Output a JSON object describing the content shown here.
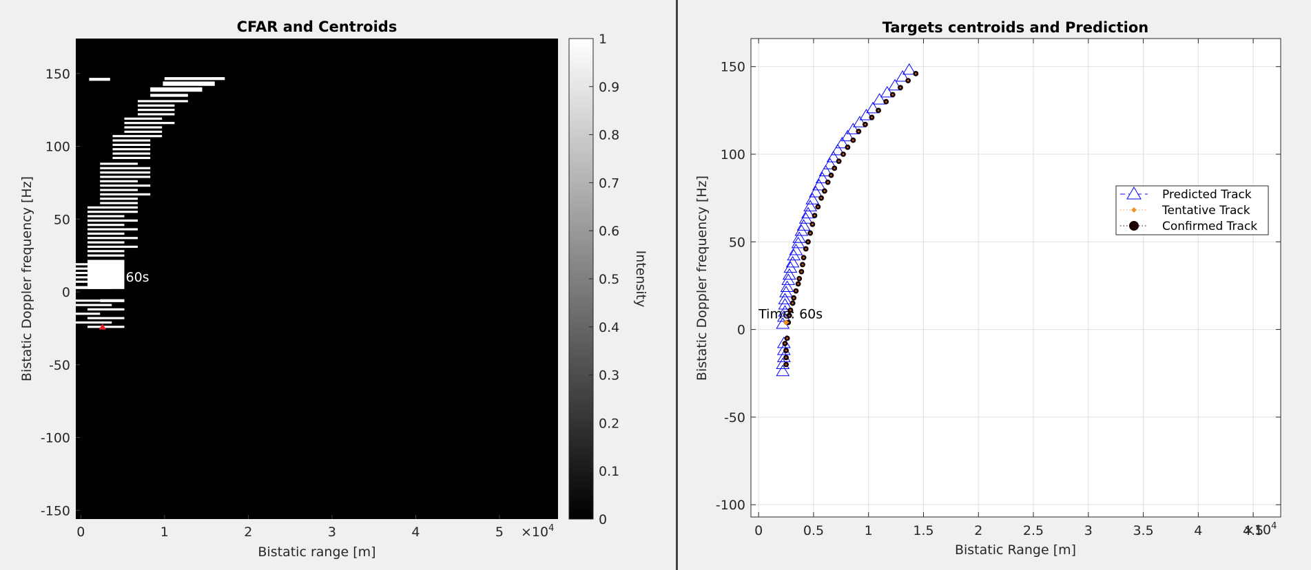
{
  "chart_data": [
    {
      "type": "heatmap",
      "title": "CFAR and Centroids",
      "xlabel": "Bistatic range [m]",
      "ylabel": "Bistatic Doppler frequency [Hz]",
      "xlim": [
        -0.06,
        5.7
      ],
      "ylim": [
        -156,
        174
      ],
      "x_exponent_label": "×10",
      "x_exponent_power": "4",
      "xticks": [
        0,
        1,
        2,
        3,
        4,
        5
      ],
      "xtick_labels": [
        "0",
        "1",
        "2",
        "3",
        "4",
        "5"
      ],
      "yticks": [
        150,
        100,
        50,
        0,
        -50,
        -100,
        -150
      ],
      "ytick_labels": [
        "150",
        "100",
        "50",
        "0",
        "-50",
        "-100",
        "-150"
      ],
      "grid": false,
      "background_color": "#000000",
      "detection_color": "#ffffff",
      "colorbar": {
        "label": "Intensity",
        "range": [
          0,
          1
        ],
        "ticks": [
          0,
          0.1,
          0.2,
          0.3,
          0.4,
          0.5,
          0.6,
          0.7,
          0.8,
          0.9,
          1
        ],
        "tick_labels": [
          "0",
          "0.1",
          "0.2",
          "0.3",
          "0.4",
          "0.5",
          "0.6",
          "0.7",
          "0.8",
          "0.9",
          "1"
        ]
      },
      "detections": [
        {
          "x0": 0.1,
          "x1": 0.35,
          "y": 146,
          "h": 2
        },
        {
          "x0": 1.0,
          "x1": 1.72,
          "y": 146.5,
          "h": 2
        },
        {
          "x0": 0.98,
          "x1": 1.6,
          "y": 143,
          "h": 3
        },
        {
          "x0": 0.83,
          "x1": 1.45,
          "y": 139,
          "h": 3
        },
        {
          "x0": 0.83,
          "x1": 1.28,
          "y": 135,
          "h": 2
        },
        {
          "x0": 0.68,
          "x1": 1.28,
          "y": 131,
          "h": 1.5
        },
        {
          "x0": 0.68,
          "x1": 1.12,
          "y": 128,
          "h": 1.5
        },
        {
          "x0": 0.68,
          "x1": 1.12,
          "y": 125,
          "h": 1.5
        },
        {
          "x0": 0.68,
          "x1": 1.12,
          "y": 122,
          "h": 1.5
        },
        {
          "x0": 0.52,
          "x1": 0.97,
          "y": 119,
          "h": 1.5
        },
        {
          "x0": 0.52,
          "x1": 1.12,
          "y": 116,
          "h": 1.5
        },
        {
          "x0": 0.52,
          "x1": 0.97,
          "y": 113,
          "h": 1.5
        },
        {
          "x0": 0.52,
          "x1": 0.97,
          "y": 110,
          "h": 1.5
        },
        {
          "x0": 0.38,
          "x1": 0.97,
          "y": 107,
          "h": 1.5
        },
        {
          "x0": 0.38,
          "x1": 0.83,
          "y": 104,
          "h": 1.5
        },
        {
          "x0": 0.38,
          "x1": 0.83,
          "y": 101,
          "h": 1.5
        },
        {
          "x0": 0.38,
          "x1": 0.83,
          "y": 98,
          "h": 1.5
        },
        {
          "x0": 0.38,
          "x1": 0.83,
          "y": 95,
          "h": 1.5
        },
        {
          "x0": 0.38,
          "x1": 0.83,
          "y": 92,
          "h": 1.5
        },
        {
          "x0": 0.23,
          "x1": 0.68,
          "y": 88,
          "h": 1.5
        },
        {
          "x0": 0.23,
          "x1": 0.83,
          "y": 85,
          "h": 1.5
        },
        {
          "x0": 0.23,
          "x1": 0.83,
          "y": 82,
          "h": 1.5
        },
        {
          "x0": 0.23,
          "x1": 0.83,
          "y": 79,
          "h": 1.5
        },
        {
          "x0": 0.23,
          "x1": 0.68,
          "y": 76,
          "h": 1.5
        },
        {
          "x0": 0.23,
          "x1": 0.83,
          "y": 73,
          "h": 1.5
        },
        {
          "x0": 0.23,
          "x1": 0.68,
          "y": 70,
          "h": 1.5
        },
        {
          "x0": 0.23,
          "x1": 0.83,
          "y": 67,
          "h": 1.5
        },
        {
          "x0": 0.23,
          "x1": 0.68,
          "y": 64,
          "h": 1.5
        },
        {
          "x0": 0.23,
          "x1": 0.68,
          "y": 61,
          "h": 1.5
        },
        {
          "x0": 0.08,
          "x1": 0.68,
          "y": 58,
          "h": 1.5
        },
        {
          "x0": 0.08,
          "x1": 0.68,
          "y": 55,
          "h": 1.5
        },
        {
          "x0": 0.08,
          "x1": 0.52,
          "y": 52,
          "h": 1.5
        },
        {
          "x0": 0.08,
          "x1": 0.68,
          "y": 49,
          "h": 1.5
        },
        {
          "x0": 0.08,
          "x1": 0.52,
          "y": 46,
          "h": 1.5
        },
        {
          "x0": 0.08,
          "x1": 0.68,
          "y": 43,
          "h": 1.5
        },
        {
          "x0": 0.08,
          "x1": 0.52,
          "y": 40,
          "h": 1.5
        },
        {
          "x0": 0.08,
          "x1": 0.68,
          "y": 37,
          "h": 1.5
        },
        {
          "x0": 0.08,
          "x1": 0.52,
          "y": 34,
          "h": 1.5
        },
        {
          "x0": 0.08,
          "x1": 0.68,
          "y": 31,
          "h": 1.5
        },
        {
          "x0": 0.08,
          "x1": 0.52,
          "y": 28,
          "h": 1.5
        },
        {
          "x0": 0.08,
          "x1": 0.52,
          "y": 25,
          "h": 1.5
        },
        {
          "x0": -0.06,
          "x1": 0.08,
          "y": 19,
          "h": 1.5
        },
        {
          "x0": -0.06,
          "x1": 0.08,
          "y": 16,
          "h": 1.5
        },
        {
          "x0": -0.06,
          "x1": 0.08,
          "y": 13,
          "h": 1.5
        },
        {
          "x0": -0.06,
          "x1": 0.08,
          "y": 10,
          "h": 1.5
        },
        {
          "x0": -0.06,
          "x1": 0.08,
          "y": 7,
          "h": 1.5
        },
        {
          "x0": 0.08,
          "x1": 0.52,
          "y": 12,
          "h": 20
        },
        {
          "x0": -0.06,
          "x1": 0.37,
          "y": 3,
          "h": 2
        },
        {
          "x0": 0.23,
          "x1": 0.52,
          "y": -6,
          "h": 2
        },
        {
          "x0": -0.06,
          "x1": 0.23,
          "y": -6,
          "h": 1.5
        },
        {
          "x0": -0.06,
          "x1": 0.37,
          "y": -9,
          "h": 1.5
        },
        {
          "x0": 0.08,
          "x1": 0.52,
          "y": -12,
          "h": 1.5
        },
        {
          "x0": -0.06,
          "x1": 0.23,
          "y": -15,
          "h": 1.5
        },
        {
          "x0": 0.08,
          "x1": 0.52,
          "y": -18,
          "h": 1.5
        },
        {
          "x0": -0.06,
          "x1": 0.37,
          "y": -21,
          "h": 1.5
        },
        {
          "x0": 0.08,
          "x1": 0.52,
          "y": -24,
          "h": 1.5
        }
      ],
      "centroid": {
        "x": 0.26,
        "y": -24,
        "color": "#e8202a"
      },
      "annotation": {
        "text": "60s",
        "x": 0.52,
        "y": 10
      }
    },
    {
      "type": "scatter",
      "title": "Targets centroids and  Prediction",
      "xlabel": "Bistatic Range [m]",
      "ylabel": "Bistatic Doppler frequency [Hz]",
      "xlim": [
        -0.07,
        4.75
      ],
      "ylim": [
        -107,
        166
      ],
      "x_exponent_label": "×10",
      "x_exponent_power": "4",
      "xticks": [
        0,
        0.5,
        1,
        1.5,
        2,
        2.5,
        3,
        3.5,
        4,
        4.5
      ],
      "xtick_labels": [
        "0",
        "0.5",
        "1",
        "1.5",
        "2",
        "2.5",
        "3",
        "3.5",
        "4",
        "4.5"
      ],
      "yticks": [
        150,
        100,
        50,
        0,
        -50,
        -100
      ],
      "ytick_labels": [
        "150",
        "100",
        "50",
        "0",
        "-50",
        "-100"
      ],
      "grid": true,
      "legend_placement": "right",
      "legend": [
        {
          "label": "Predicted Track",
          "marker": "triangle",
          "color": "#0000ff",
          "line": "dashed"
        },
        {
          "label": "Tentative Track",
          "marker": "diamond",
          "color": "#e8962a",
          "line": "dotted"
        },
        {
          "label": "Confirmed Track",
          "marker": "circle",
          "color": "#1a0000",
          "line": "dotted"
        }
      ],
      "series": [
        {
          "name": "Predicted Track",
          "marker": "triangle",
          "color": "#0000ff",
          "x": [
            0.22,
            0.22,
            0.23,
            0.23,
            0.23,
            0.22,
            0.23,
            0.24,
            0.24,
            0.24,
            0.25,
            0.26,
            0.27,
            0.28,
            0.29,
            0.31,
            0.32,
            0.34,
            0.36,
            0.37,
            0.39,
            0.41,
            0.43,
            0.45,
            0.47,
            0.49,
            0.52,
            0.55,
            0.58,
            0.61,
            0.65,
            0.68,
            0.72,
            0.76,
            0.81,
            0.86,
            0.92,
            0.98,
            1.04,
            1.1,
            1.17,
            1.24,
            1.31,
            1.37
          ],
          "y": [
            -24,
            -20,
            -16,
            -12,
            -8,
            3,
            7,
            10,
            14,
            17,
            21,
            24,
            28,
            31,
            35,
            38,
            42,
            45,
            49,
            52,
            56,
            59,
            63,
            66,
            70,
            74,
            78,
            82,
            86,
            90,
            94,
            98,
            102,
            106,
            110,
            114,
            118,
            122,
            126,
            131,
            135,
            139,
            144,
            148
          ]
        },
        {
          "name": "Confirmed Track",
          "marker": "circle",
          "color": "#1a0000",
          "x": [
            0.25,
            0.25,
            0.25,
            0.24,
            0.26,
            0.27,
            0.28,
            0.29,
            0.31,
            0.32,
            0.34,
            0.36,
            0.37,
            0.39,
            0.4,
            0.41,
            0.43,
            0.45,
            0.47,
            0.49,
            0.51,
            0.54,
            0.57,
            0.6,
            0.63,
            0.66,
            0.69,
            0.73,
            0.77,
            0.81,
            0.86,
            0.91,
            0.97,
            1.03,
            1.09,
            1.16,
            1.22,
            1.29,
            1.36,
            1.43
          ],
          "y": [
            -20,
            -16,
            -12,
            -8,
            -5,
            4,
            8,
            11,
            15,
            18,
            22,
            26,
            29,
            33,
            37,
            41,
            46,
            50,
            55,
            60,
            65,
            70,
            75,
            79,
            84,
            88,
            92,
            96,
            100,
            104,
            108,
            113,
            117,
            121,
            125,
            130,
            134,
            138,
            142,
            146
          ]
        },
        {
          "name": "Tentative Track",
          "marker": "diamond",
          "color": "#e8962a",
          "x": [
            0.25
          ],
          "y": [
            4
          ]
        }
      ],
      "annotation": {
        "text": "Time: 60s",
        "x": 0.0,
        "y": 9
      }
    }
  ]
}
